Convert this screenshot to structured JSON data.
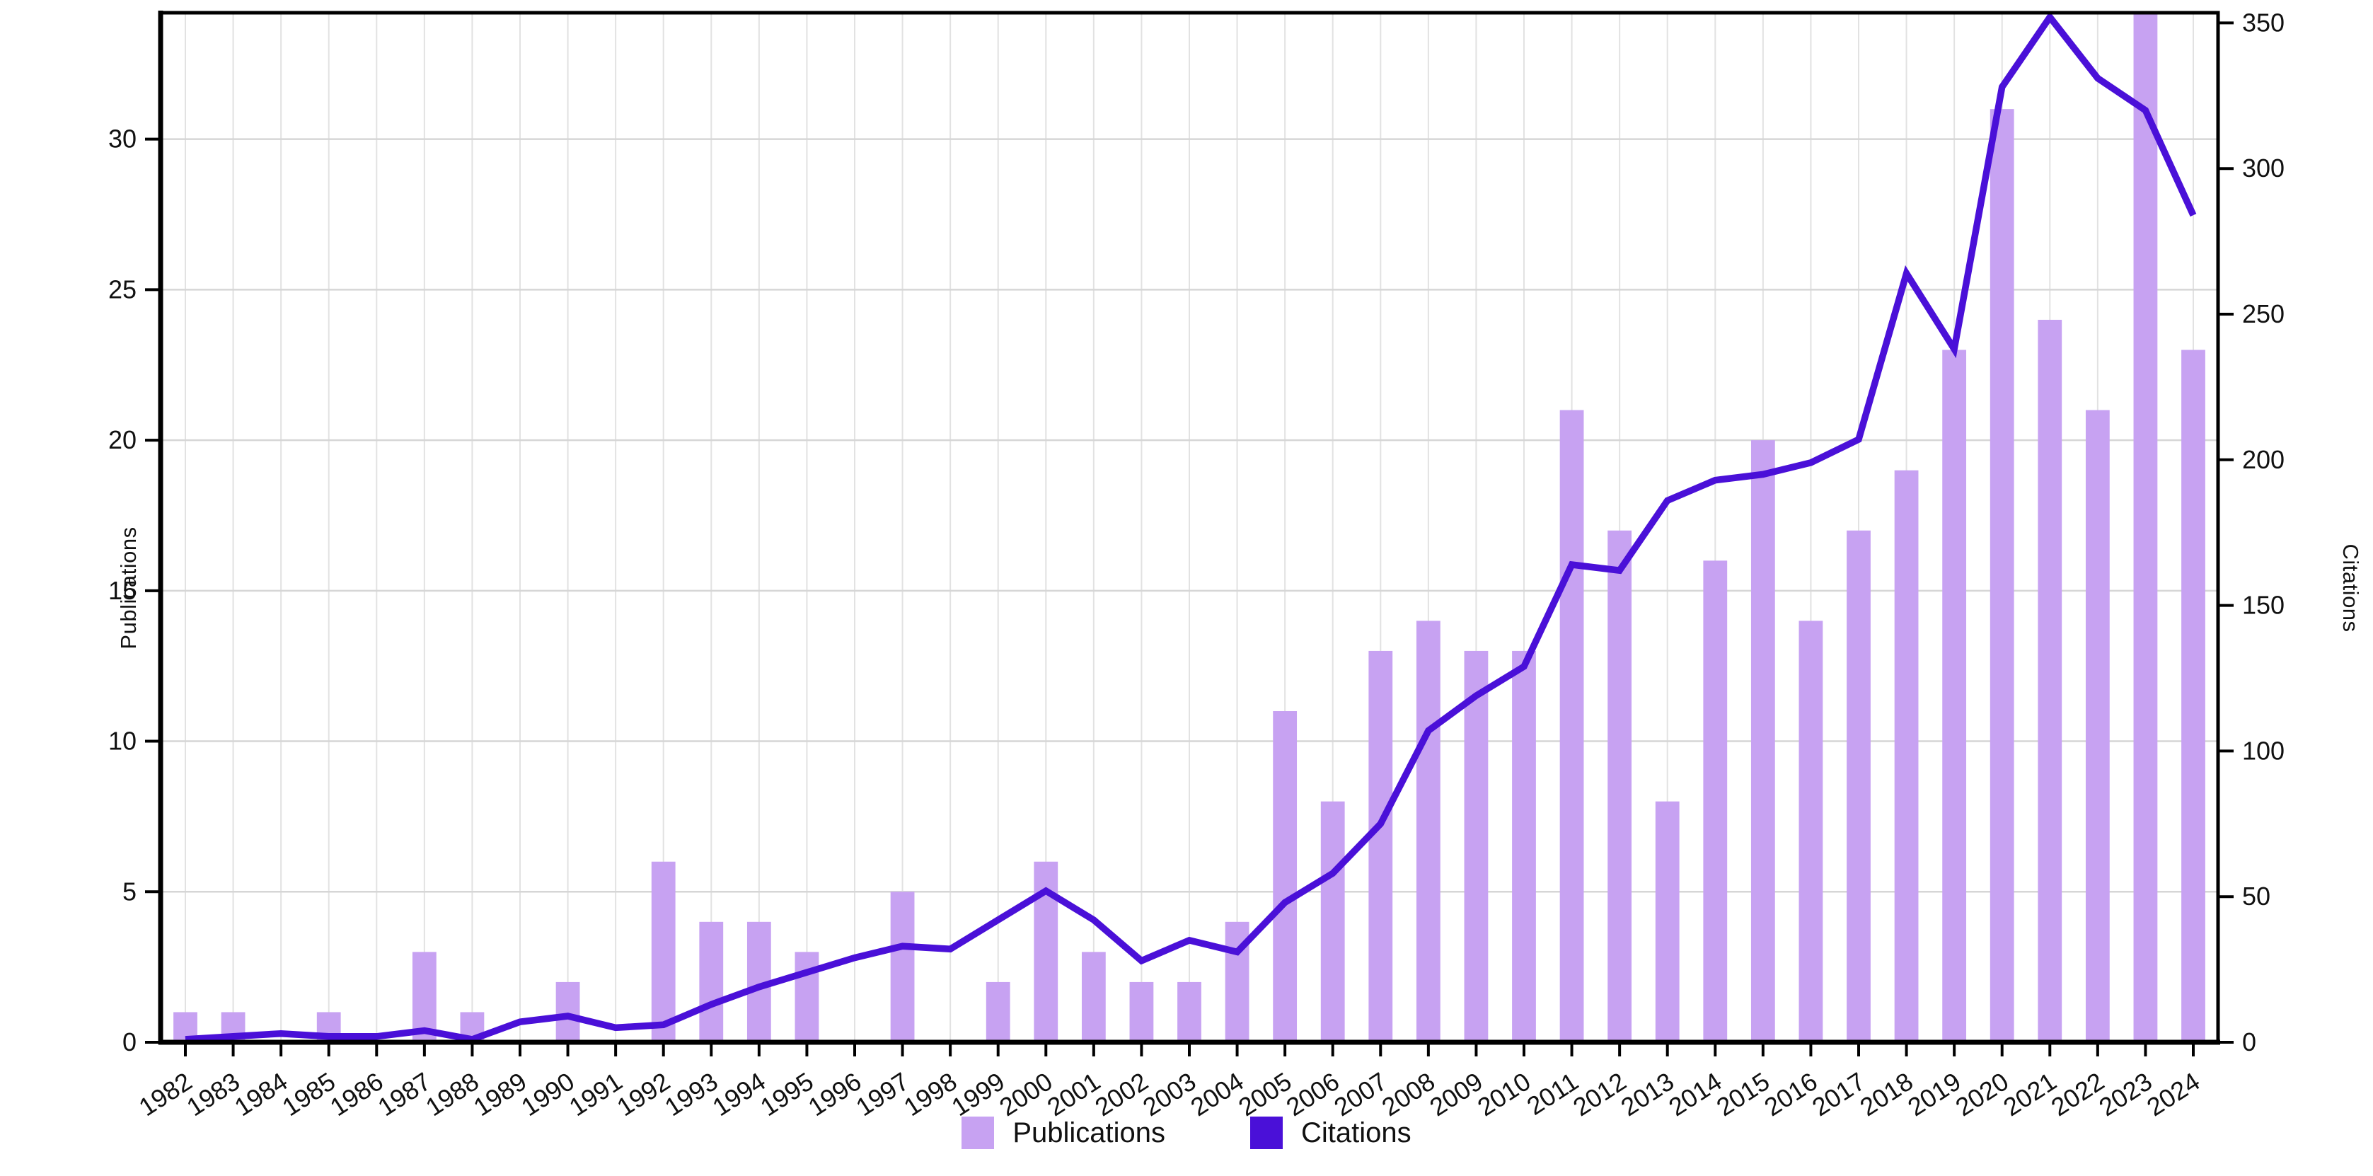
{
  "chart_data": {
    "type": "bar+line combo",
    "title": "",
    "categories": [
      1982,
      1983,
      1984,
      1985,
      1986,
      1987,
      1988,
      1989,
      1990,
      1991,
      1992,
      1993,
      1994,
      1995,
      1996,
      1997,
      1998,
      1999,
      2000,
      2001,
      2002,
      2003,
      2004,
      2005,
      2006,
      2007,
      2008,
      2009,
      2010,
      2011,
      2012,
      2013,
      2014,
      2015,
      2016,
      2017,
      2018,
      2019,
      2020,
      2021,
      2022,
      2023,
      2024
    ],
    "series": [
      {
        "name": "Publications",
        "type": "bar",
        "axis": "left",
        "color": "#c7a2f2",
        "values": [
          1,
          1,
          0,
          1,
          0,
          3,
          1,
          0,
          2,
          0,
          6,
          4,
          4,
          3,
          0,
          5,
          0,
          2,
          6,
          3,
          2,
          2,
          4,
          11,
          8,
          13,
          14,
          13,
          13,
          21,
          17,
          8,
          16,
          20,
          14,
          17,
          19,
          23,
          31,
          24,
          21,
          35,
          23
        ]
      },
      {
        "name": "Citations",
        "type": "line",
        "axis": "right",
        "color": "#4a10d8",
        "values": [
          1,
          2,
          3,
          2,
          2,
          4,
          1,
          7,
          9,
          5,
          6,
          13,
          19,
          24,
          29,
          33,
          32,
          42,
          52,
          42,
          28,
          35,
          31,
          48,
          58,
          75,
          107,
          119,
          129,
          164,
          162,
          186,
          193,
          195,
          199,
          207,
          264,
          238,
          328,
          352,
          331,
          320,
          284
        ]
      }
    ],
    "left_axis": {
      "label": "Publications",
      "ticks": [
        0,
        5,
        10,
        15,
        20,
        25,
        30
      ],
      "min": 0,
      "max": 34.2
    },
    "right_axis": {
      "label": "Citations",
      "ticks": [
        0,
        50,
        100,
        150,
        200,
        250,
        300,
        350
      ],
      "min": 0,
      "max": 353.5
    },
    "grid": true,
    "x_tick_rotation_deg": -33,
    "legend_position": "bottom-center"
  },
  "legend": {
    "items": [
      {
        "label": "Publications",
        "color": "#c7a2f2"
      },
      {
        "label": "Citations",
        "color": "#4a10d8"
      }
    ]
  },
  "colors": {
    "background": "#ffffff",
    "spine": "#000000",
    "grid_horizontal": "#d6d6d6",
    "grid_vertical": "#e2e2e2",
    "tick_text": "#111111"
  }
}
